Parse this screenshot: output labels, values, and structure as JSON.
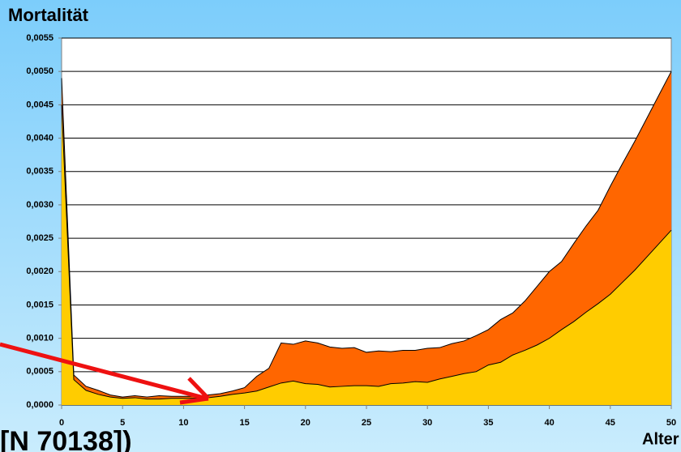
{
  "chart_data": {
    "type": "area",
    "title": "Mortalität",
    "x_label": "Alter",
    "annotation": "[N 70138])",
    "x": [
      0,
      1,
      2,
      3,
      4,
      5,
      6,
      7,
      8,
      9,
      10,
      11,
      12,
      13,
      14,
      15,
      16,
      17,
      18,
      19,
      20,
      21,
      22,
      23,
      24,
      25,
      26,
      27,
      28,
      29,
      30,
      31,
      32,
      33,
      34,
      35,
      36,
      37,
      38,
      39,
      40,
      41,
      42,
      43,
      44,
      45,
      46,
      47,
      48,
      49,
      50
    ],
    "series": [
      {
        "color": "#ff6600",
        "values": [
          0.0049,
          0.00045,
          0.00028,
          0.00022,
          0.00015,
          0.00012,
          0.00014,
          0.00012,
          0.00014,
          0.00013,
          0.00013,
          0.00013,
          0.00015,
          0.00017,
          0.00021,
          0.00026,
          0.00043,
          0.00055,
          0.00093,
          0.00091,
          0.00096,
          0.00093,
          0.00087,
          0.00085,
          0.00086,
          0.00079,
          0.00081,
          0.0008,
          0.00082,
          0.00082,
          0.00085,
          0.00086,
          0.00092,
          0.00096,
          0.00104,
          0.00113,
          0.00128,
          0.00138,
          0.00156,
          0.00178,
          0.002,
          0.00215,
          0.00242,
          0.00268,
          0.00292,
          0.00328,
          0.00362,
          0.00395,
          0.0043,
          0.00465,
          0.005
        ]
      },
      {
        "color": "#ffcc00",
        "values": [
          0.0045,
          0.00038,
          0.00022,
          0.00016,
          0.00012,
          0.0001,
          0.00011,
          9e-05,
          9e-05,
          0.0001,
          0.0001,
          0.0001,
          0.00011,
          0.00013,
          0.00016,
          0.00018,
          0.00021,
          0.00027,
          0.00033,
          0.00036,
          0.00032,
          0.00031,
          0.00027,
          0.00028,
          0.00029,
          0.00029,
          0.00028,
          0.00032,
          0.00033,
          0.00035,
          0.00034,
          0.00039,
          0.00043,
          0.00047,
          0.0005,
          0.0006,
          0.00064,
          0.00075,
          0.00082,
          0.0009,
          0.001,
          0.00113,
          0.00125,
          0.00139,
          0.00152,
          0.00166,
          0.00184,
          0.00202,
          0.00222,
          0.00242,
          0.00262
        ]
      }
    ],
    "xlim": [
      0,
      50
    ],
    "xticks": [
      0,
      5,
      10,
      15,
      20,
      25,
      30,
      35,
      40,
      45,
      50
    ],
    "ylim": [
      0,
      0.0055
    ],
    "yticks": [
      {
        "value": 0,
        "label": "0,0000"
      },
      {
        "value": 0.0005,
        "label": "0,0005"
      },
      {
        "value": 0.001,
        "label": "0,0010"
      },
      {
        "value": 0.0015,
        "label": "0,0015"
      },
      {
        "value": 0.002,
        "label": "0,0020"
      },
      {
        "value": 0.0025,
        "label": "0,0025"
      },
      {
        "value": 0.003,
        "label": "0,0030"
      },
      {
        "value": 0.0035,
        "label": "0,0035"
      },
      {
        "value": 0.004,
        "label": "0,0040"
      },
      {
        "value": 0.0045,
        "label": "0,0045"
      },
      {
        "value": 0.005,
        "label": "0,0050"
      },
      {
        "value": 0.0055,
        "label": "0,0055"
      }
    ],
    "grid": true
  }
}
